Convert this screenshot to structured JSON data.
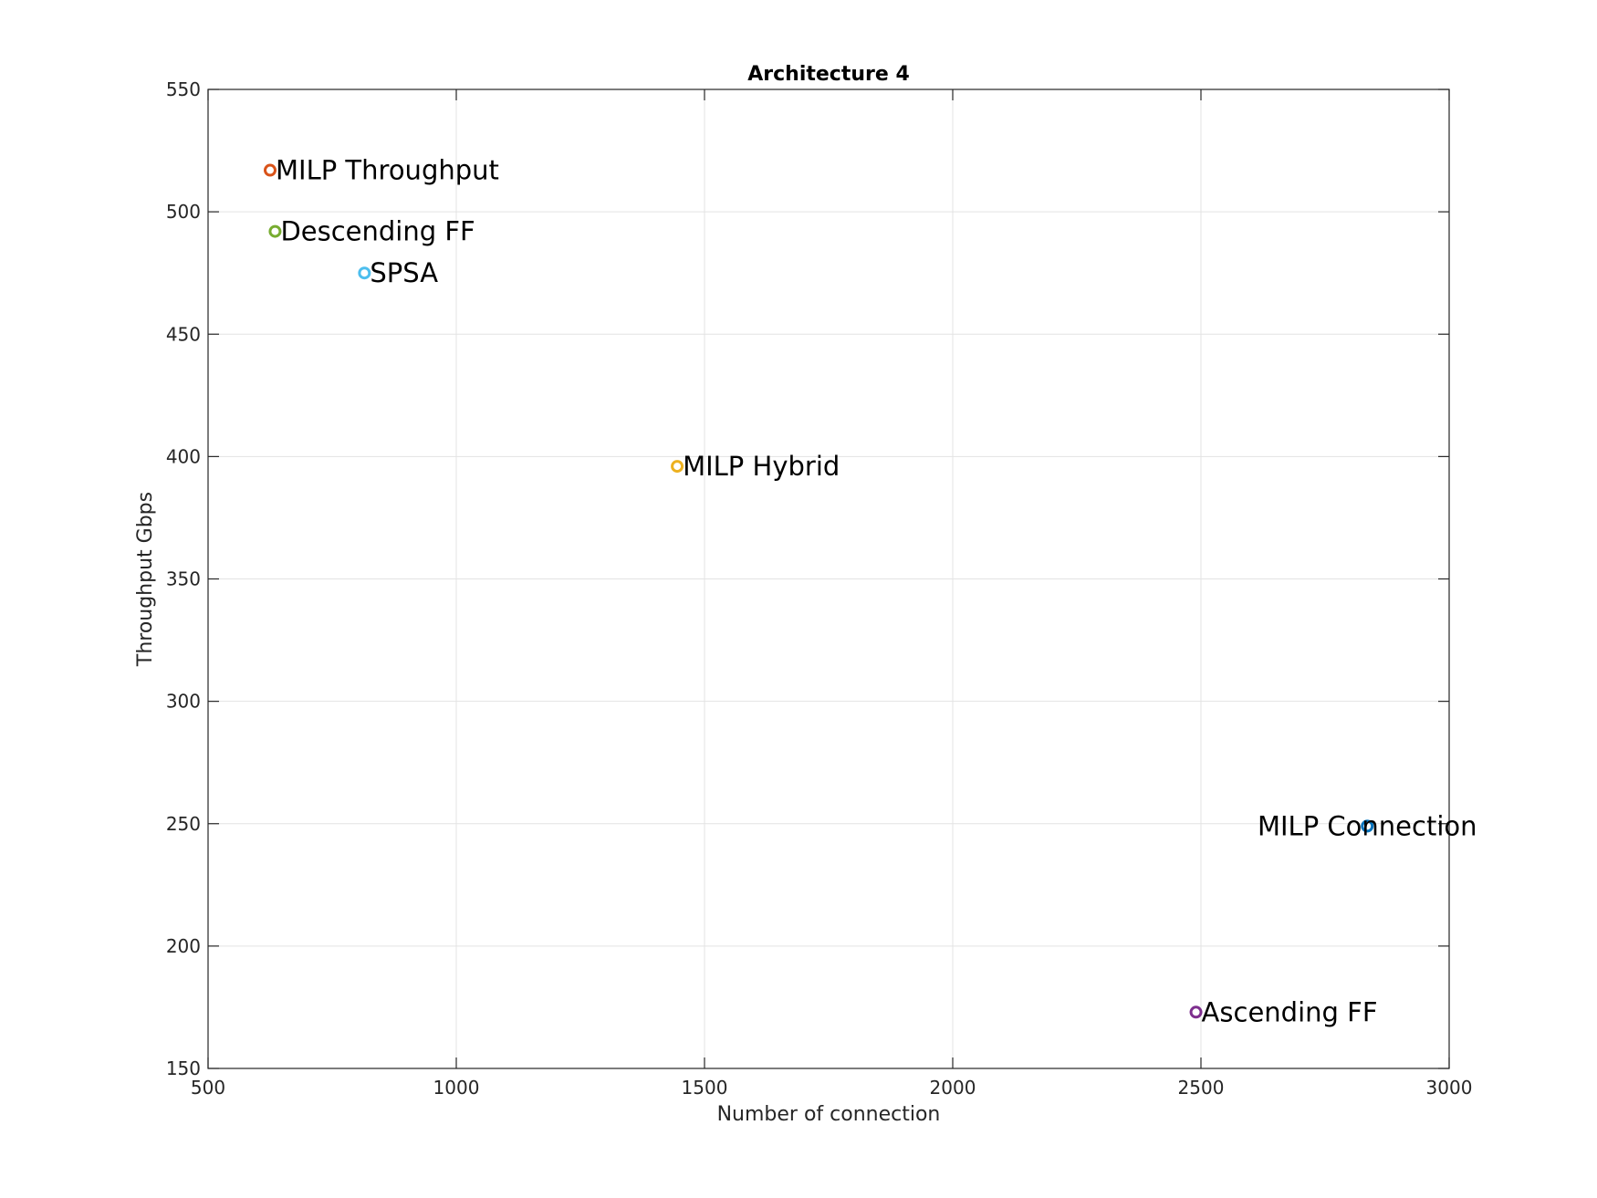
{
  "chart_data": {
    "type": "scatter",
    "title": "Architecture 4",
    "xlabel": "Number of connection",
    "ylabel": "Throughput Gbps",
    "xlim": [
      500,
      3000
    ],
    "ylim": [
      150,
      550
    ],
    "xticks": [
      500,
      1000,
      1500,
      2000,
      2500,
      3000
    ],
    "yticks": [
      150,
      200,
      250,
      300,
      350,
      400,
      450,
      500,
      550
    ],
    "xtick_labels": [
      "500",
      "1000",
      "1500",
      "2000",
      "2500",
      "3000"
    ],
    "ytick_labels": [
      "150",
      "200",
      "250",
      "300",
      "350",
      "400",
      "450",
      "500",
      "550"
    ],
    "grid": true,
    "points": [
      {
        "label": "MILP Throughput",
        "x": 625,
        "y": 517,
        "color": "#d95319",
        "label_side": "right"
      },
      {
        "label": "Descending FF",
        "x": 635,
        "y": 492,
        "color": "#77ac30",
        "label_side": "right"
      },
      {
        "label": "SPSA",
        "x": 815,
        "y": 475,
        "color": "#4dbeee",
        "label_side": "right"
      },
      {
        "label": "MILP Hybrid",
        "x": 1445,
        "y": 396,
        "color": "#edb120",
        "label_side": "right"
      },
      {
        "label": "MILP Connection",
        "x": 2835,
        "y": 249,
        "color": "#0072bd",
        "label_side": "center"
      },
      {
        "label": "Ascending FF",
        "x": 2490,
        "y": 173,
        "color": "#7e2f8e",
        "label_side": "right"
      }
    ]
  }
}
